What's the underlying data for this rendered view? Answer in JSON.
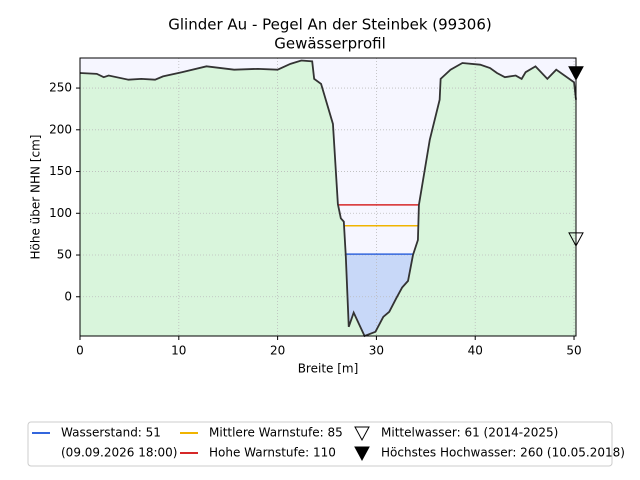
{
  "chart_data": {
    "type": "profile",
    "title": "Glinder Au - Pegel An der Steinbek (99306)",
    "subtitle": "Gewässerprofil",
    "xlabel": "Breite [m]",
    "ylabel": "Höhe über NHN [cm]",
    "xlim": [
      0,
      50.2
    ],
    "ylim": [
      -47,
      286
    ],
    "xticks": [
      0,
      10,
      20,
      30,
      40,
      50
    ],
    "yticks": [
      0,
      50,
      100,
      150,
      200,
      250
    ],
    "grid": true,
    "profile": {
      "x": [
        0,
        1.7,
        2.4,
        2.9,
        4.9,
        6.2,
        7.6,
        8.4,
        10.3,
        12.8,
        15.6,
        18,
        20,
        21.3,
        22.4,
        23.5,
        23.7,
        24.4,
        25.6,
        26.1,
        26.4,
        26.7,
        26.9,
        27.2,
        27.7,
        28.8,
        29.9,
        30.7,
        31.3,
        32,
        32.6,
        33.2,
        33.7,
        34.2,
        34.3,
        35.4,
        36.4,
        36.5,
        37.5,
        38.7,
        40.5,
        41.5,
        42.2,
        43,
        44.1,
        44.7,
        45.1,
        46.1,
        47.3,
        48.2,
        50,
        50.2
      ],
      "y": [
        268,
        267,
        263,
        265,
        260,
        261,
        260,
        264,
        269,
        276,
        272,
        273,
        272,
        279,
        283,
        282,
        261,
        255,
        207,
        111,
        94,
        90,
        49,
        -36,
        -19,
        -47,
        -42,
        -24,
        -18,
        -2,
        11,
        19,
        50,
        68,
        110,
        188,
        236,
        261,
        272,
        280,
        278,
        274,
        268,
        263,
        265,
        261,
        269,
        276,
        261,
        272,
        257,
        236
      ]
    },
    "levels": [
      {
        "name": "Wasserstand: 51",
        "note": "(09.09.2026 18:00)",
        "value": 51,
        "color": "#3366dd"
      },
      {
        "name": "Mittlere Warnstufe: 85",
        "value": 85,
        "color": "#f0b400"
      },
      {
        "name": "Hohe Warnstufe: 110",
        "value": 110,
        "color": "#d62728"
      }
    ],
    "markers": [
      {
        "name": "Mittelwasser: 61 (2014-2025)",
        "value": 61,
        "filled": false
      },
      {
        "name": "Höchstes Hochwasser: 260 (10.05.2018)",
        "value": 260,
        "filled": true
      }
    ]
  }
}
